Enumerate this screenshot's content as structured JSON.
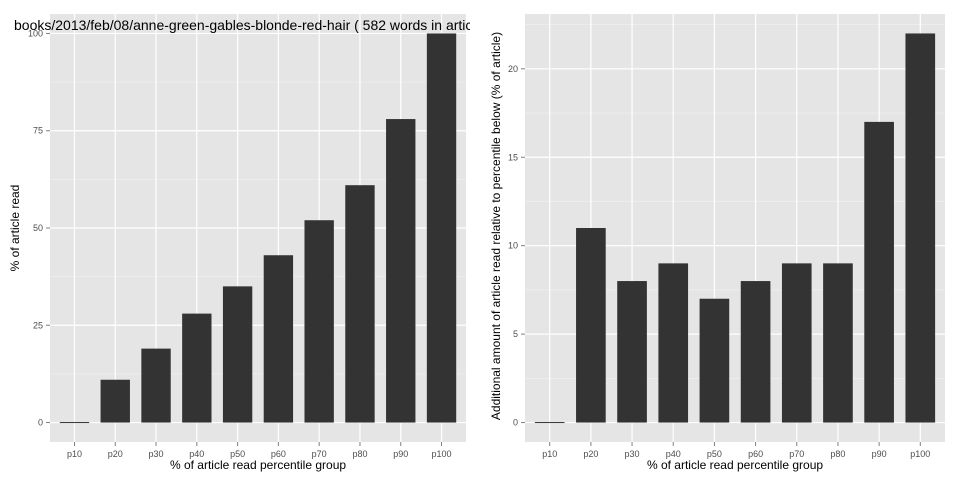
{
  "colors": {
    "panel_background": "#e5e5e5",
    "major_grid": "#ffffff",
    "minor_grid": "#f2f2f2",
    "bar_fill": "#333333",
    "tick_text": "#4d4d4d"
  },
  "chart_data": [
    {
      "type": "bar",
      "title": "books/2013/feb/08/anne-green-gables-blonde-red-hair ( 582 words in artic",
      "xlabel": "% of article read percentile group",
      "ylabel": "% of article read",
      "categories": [
        "p10",
        "p20",
        "p30",
        "p40",
        "p50",
        "p60",
        "p70",
        "p80",
        "p90",
        "p100"
      ],
      "values": [
        0,
        11,
        19,
        28,
        35,
        43,
        52,
        61,
        78,
        100
      ],
      "yticks": [
        0,
        25,
        50,
        75,
        100
      ],
      "ylim": [
        -5,
        105
      ],
      "grid": true
    },
    {
      "type": "bar",
      "title": "",
      "xlabel": "% of article read percentile group",
      "ylabel": "Additional amount of article read relative to percentile below (% of article)",
      "categories": [
        "p10",
        "p20",
        "p30",
        "p40",
        "p50",
        "p60",
        "p70",
        "p80",
        "p90",
        "p100"
      ],
      "values": [
        0,
        11,
        8,
        9,
        7,
        8,
        9,
        9,
        17,
        22
      ],
      "yticks": [
        0,
        5,
        10,
        15,
        20
      ],
      "ylim": [
        -1.1,
        23.1
      ],
      "grid": true
    }
  ]
}
